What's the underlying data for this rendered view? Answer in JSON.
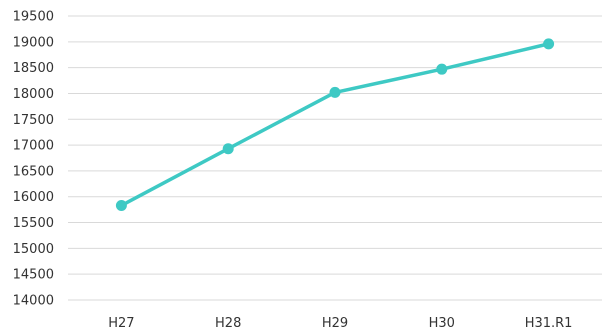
{
  "chart_data": {
    "type": "line",
    "title": "",
    "xlabel": "",
    "ylabel": "",
    "categories": [
      "H27",
      "H28",
      "H29",
      "H30",
      "H31.R1"
    ],
    "series": [
      {
        "values": [
          15830,
          16930,
          18020,
          18470,
          18960
        ],
        "color": "#3ec9c4"
      }
    ],
    "ylim": [
      14000,
      19500
    ],
    "yticks": [
      19500,
      19000,
      18500,
      18000,
      17500,
      17000,
      16500,
      16000,
      15500,
      15000,
      14500,
      14000
    ],
    "grid": true,
    "legend": "none"
  }
}
